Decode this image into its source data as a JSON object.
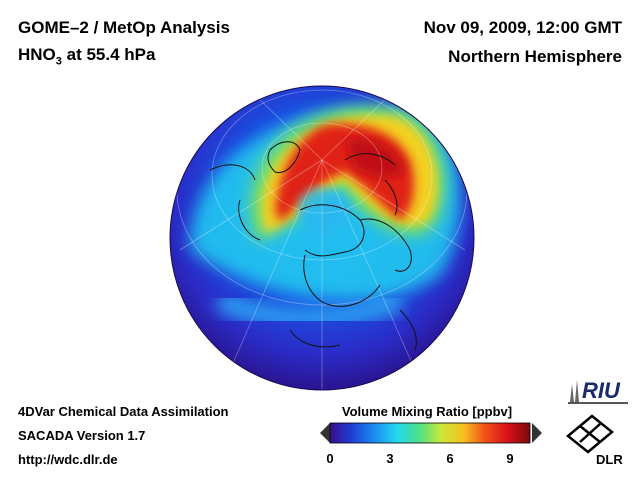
{
  "header": {
    "title_line1": "GOME–2 / MetOp Analysis",
    "title_line2_species": "HNO",
    "title_line2_sub": "3",
    "title_line2_rest": " at 55.4 hPa",
    "date": "Nov 09, 2009, 12:00 GMT",
    "hemisphere": "Northern Hemisphere"
  },
  "footer": {
    "line1": "4DVar Chemical Data Assimilation",
    "line2": "SACADA Version 1.7",
    "line3": "http://wdc.dlr.de"
  },
  "colorbar": {
    "title": "Volume Mixing Ratio [ppbv]",
    "ticks": [
      "0",
      "3",
      "6",
      "9"
    ],
    "min": 0,
    "max": 10,
    "tick_values": [
      0,
      3,
      6,
      9
    ],
    "colors": [
      "#3a0c8c",
      "#1f3fd6",
      "#1a8cf0",
      "#22d8ee",
      "#4ce08a",
      "#c8e838",
      "#f8c020",
      "#f05018",
      "#d8101a",
      "#7a0a0a"
    ]
  },
  "logos": {
    "riu": "RIU",
    "dlr": "DLR"
  }
}
